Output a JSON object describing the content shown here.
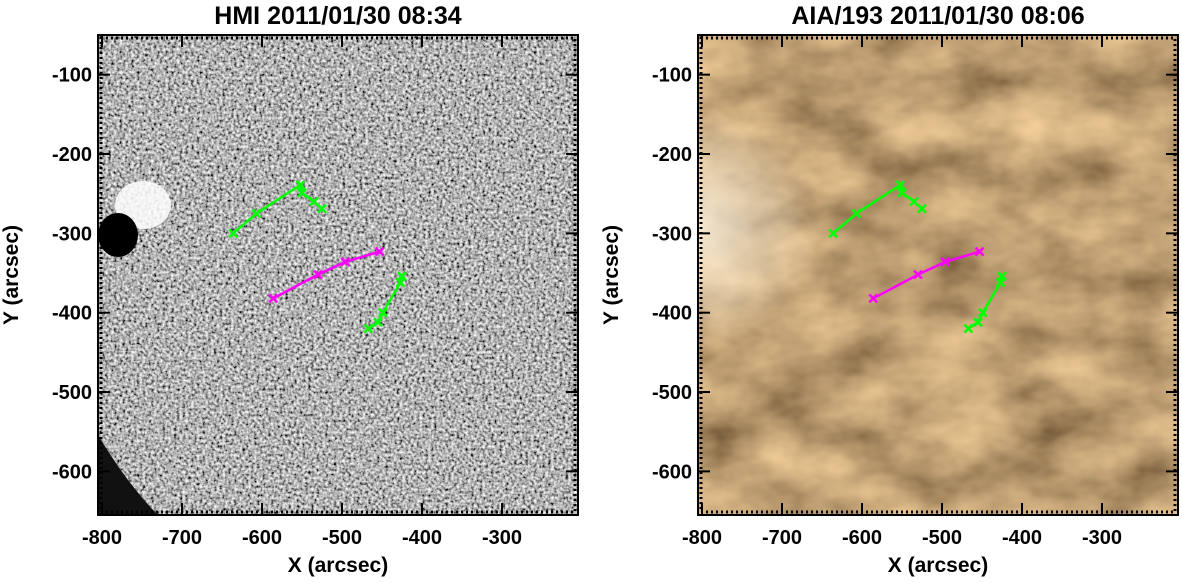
{
  "chart_data": [
    {
      "type": "line",
      "title": "HMI 2011/01/30 08:34",
      "xlabel": "X (arcsec)",
      "ylabel": "Y (arcsec)",
      "background": "magnetogram",
      "xlim": [
        -805,
        -205
      ],
      "ylim": [
        -655,
        -50
      ],
      "xticks": [
        -800,
        -700,
        -600,
        -500,
        -400,
        -300
      ],
      "yticks": [
        -600,
        -500,
        -400,
        -300,
        -200,
        -100
      ],
      "series": [
        {
          "color": "#00ff00",
          "x": [
            -636,
            -607,
            -552,
            -550,
            -535,
            -525
          ],
          "values": [
            -300,
            -275,
            -239,
            -249,
            -260,
            -269
          ]
        },
        {
          "color": "#ff00ff",
          "x": [
            -586,
            -530,
            -496,
            -453
          ],
          "values": [
            -382,
            -352,
            -336,
            -323
          ]
        },
        {
          "color": "#00ff00",
          "x": [
            -467,
            -455,
            -449,
            -427,
            -425
          ],
          "values": [
            -420,
            -412,
            -400,
            -362,
            -354
          ]
        }
      ]
    },
    {
      "type": "line",
      "title": "AIA/193 2011/01/30 08:06",
      "xlabel": "X (arcsec)",
      "ylabel": "Y (arcsec)",
      "background": "euv",
      "xlim": [
        -805,
        -205
      ],
      "ylim": [
        -655,
        -50
      ],
      "xticks": [
        -800,
        -700,
        -600,
        -500,
        -400,
        -300
      ],
      "yticks": [
        -600,
        -500,
        -400,
        -300,
        -200,
        -100
      ],
      "series": [
        {
          "color": "#00ff00",
          "x": [
            -636,
            -607,
            -552,
            -550,
            -535,
            -525
          ],
          "values": [
            -300,
            -275,
            -239,
            -249,
            -260,
            -269
          ]
        },
        {
          "color": "#ff00ff",
          "x": [
            -586,
            -530,
            -496,
            -453
          ],
          "values": [
            -382,
            -352,
            -336,
            -323
          ]
        },
        {
          "color": "#00ff00",
          "x": [
            -467,
            -455,
            -449,
            -427,
            -425
          ],
          "values": [
            -420,
            -412,
            -400,
            -362,
            -354
          ]
        }
      ]
    }
  ]
}
